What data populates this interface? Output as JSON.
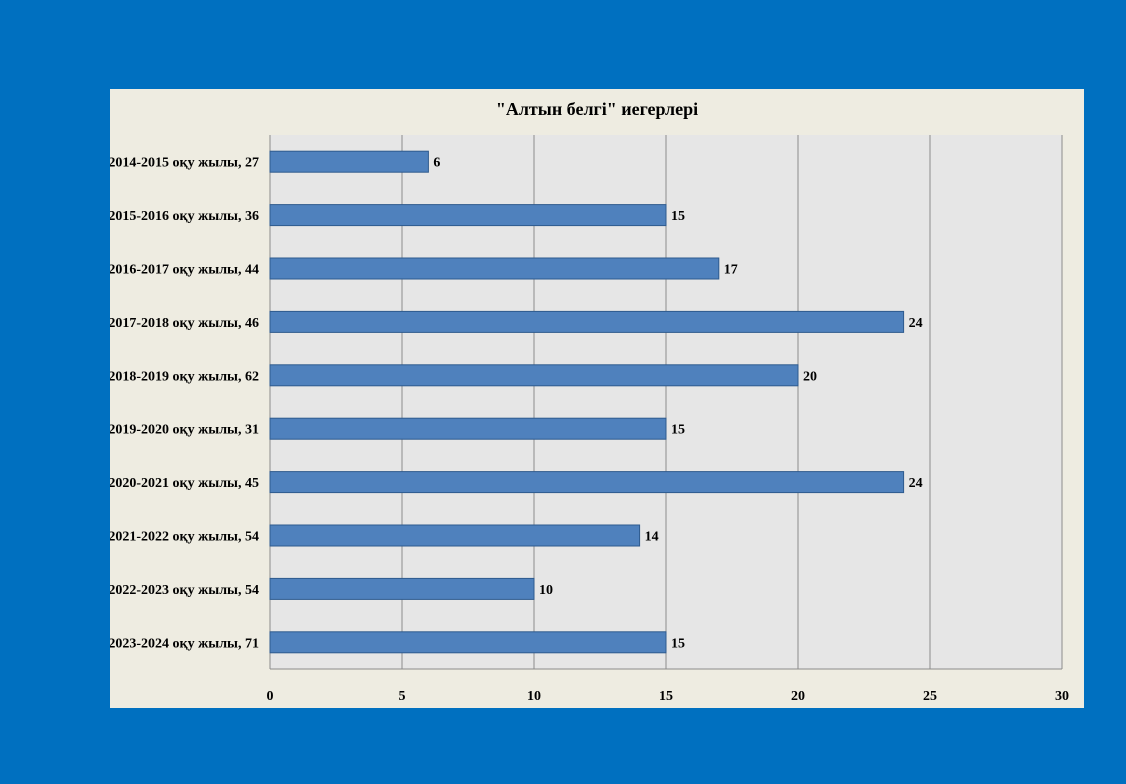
{
  "colors": {
    "page_background": "#0070C0",
    "chart_background": "#EEECE1",
    "plot_background": "#E6E6E6",
    "bar_fill": "#4F81BD",
    "bar_stroke": "#2E5A8E",
    "gridline": "#8C8C8C"
  },
  "chart_data": {
    "type": "bar",
    "orientation": "horizontal",
    "title": "\"Алтын белгі\" иегерлері",
    "xlabel": "",
    "ylabel": "",
    "categories": [
      "2014-2015 оқу жылы, 27",
      "2015-2016 оқу жылы, 36",
      "2016-2017 оқу жылы, 44",
      "2017-2018 оқу жылы, 46",
      "2018-2019 оқу жылы, 62",
      "2019-2020 оқу жылы, 31",
      "2020-2021 оқу жылы, 45",
      "2021-2022 оқу жылы, 54",
      "2022-2023 оқу жылы, 54",
      "2023-2024 оқу жылы, 71"
    ],
    "values": [
      6,
      15,
      17,
      24,
      20,
      15,
      24,
      14,
      10,
      15
    ],
    "xlim": [
      0,
      30
    ],
    "x_ticks": [
      "0",
      "5",
      "10",
      "15",
      "20",
      "25",
      "30"
    ],
    "grid": true,
    "legend": "none",
    "data_labels": true
  }
}
